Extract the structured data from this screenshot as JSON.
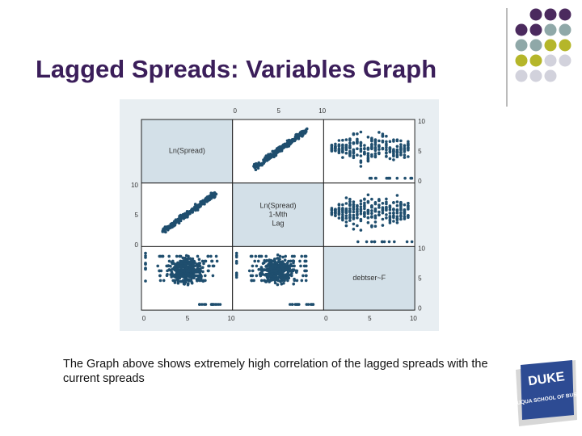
{
  "title": "Lagged Spreads: Variables Graph",
  "figure": {
    "labels": [
      [
        "Ln(Spread)"
      ],
      [
        "Ln(Spread)",
        "1-Mth",
        "Lag"
      ],
      [
        "debtser~F"
      ]
    ],
    "top_ticks": [
      "0",
      "5",
      "10"
    ],
    "right_ticks_top": [
      "10",
      "5",
      "0"
    ],
    "left_ticks_middle": [
      "10",
      "5",
      "0"
    ],
    "right_ticks_bottom": [
      "10",
      "5",
      "0"
    ],
    "bottom_ticks_left": [
      "0",
      "5",
      "10"
    ],
    "bottom_ticks_right": [
      "0",
      "5",
      "10"
    ]
  },
  "caption": "The Graph above shows extremely high correlation of the lagged spreads with the current spreads",
  "logo": {
    "name": "DUKE",
    "school": "THE FUQUA SCHOOL OF BUSINESS"
  }
}
